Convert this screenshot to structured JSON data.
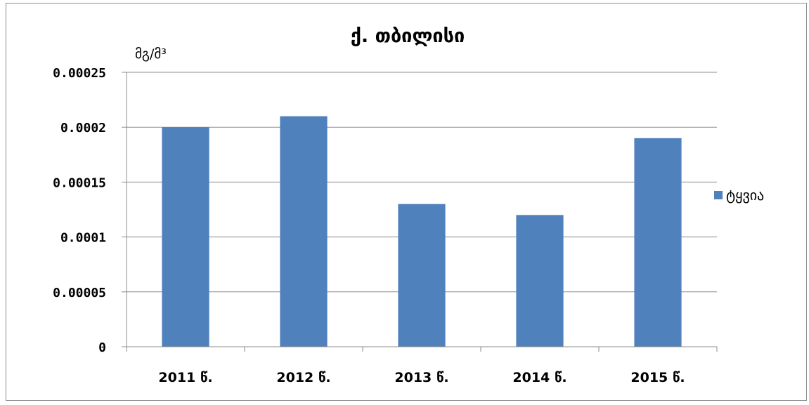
{
  "chart_data": {
    "type": "bar",
    "title": "ქ. თბილისი",
    "unit_label": "მგ/მ³",
    "categories": [
      "2011 წ.",
      "2012 წ.",
      "2013 წ.",
      "2014 წ.",
      "2015 წ."
    ],
    "series": [
      {
        "name": "ტყვია",
        "values": [
          0.0002,
          0.00021,
          0.00013,
          0.00012,
          0.00019
        ]
      }
    ],
    "ylim": [
      0,
      0.00025
    ],
    "y_ticks": [
      0,
      5e-05,
      0.0001,
      0.00015,
      0.0002,
      0.00025
    ],
    "y_tick_labels": [
      "0",
      "0.00005",
      "0.0001",
      "0.00015",
      "0.0002",
      "0.00025"
    ],
    "grid": true,
    "legend_position": "right",
    "colors": {
      "bar": "#4f81bd",
      "gridline": "#8c8c8c",
      "axis": "#8c8c8c"
    }
  }
}
